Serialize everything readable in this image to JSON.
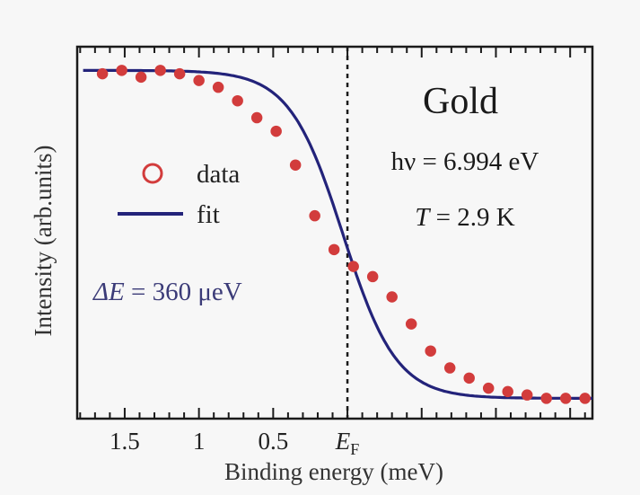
{
  "chart_data": {
    "type": "scatter",
    "title": "",
    "xlabel": "Binding energy (meV)",
    "ylabel": "Intensity (arb.units)",
    "x_reversed": true,
    "xlim": [
      -1.65,
      1.82
    ],
    "ylim": [
      -0.05,
      1.05
    ],
    "x_ticks": [
      {
        "value": 1.5,
        "label": "1.5"
      },
      {
        "value": 1.0,
        "label": "1"
      },
      {
        "value": 0.5,
        "label": "0.5"
      },
      {
        "value": 0.0,
        "label": "E",
        "subscript": "F"
      }
    ],
    "minor_tick_step": 0.1,
    "major_tick_step": 0.5,
    "y_ticks": "unlabeled",
    "fermi_line_x": 0.0,
    "series": [
      {
        "name": "data",
        "kind": "markers",
        "marker": "open-circle",
        "color": "#d23c3c",
        "x": [
          1.65,
          1.52,
          1.39,
          1.26,
          1.13,
          1.0,
          0.87,
          0.74,
          0.61,
          0.48,
          0.35,
          0.22,
          0.09,
          -0.04,
          -0.17,
          -0.3,
          -0.43,
          -0.56,
          -0.69,
          -0.82,
          -0.95,
          -1.08,
          -1.21,
          -1.34,
          -1.47,
          -1.6
        ],
        "y": [
          0.97,
          0.98,
          0.96,
          0.98,
          0.97,
          0.95,
          0.93,
          0.89,
          0.84,
          0.8,
          0.7,
          0.55,
          0.45,
          0.4,
          0.37,
          0.31,
          0.23,
          0.15,
          0.1,
          0.07,
          0.04,
          0.03,
          0.02,
          0.01,
          0.01,
          0.01
        ]
      },
      {
        "name": "fit",
        "kind": "line",
        "color": "#23237a",
        "function": "fermi",
        "params": {
          "amplitude": 0.97,
          "baseline": 0.01,
          "center": 0.03,
          "width": 0.18
        },
        "x_range": [
          -1.65,
          1.78
        ]
      }
    ],
    "legend": {
      "placement": "middle-left",
      "items": [
        "data",
        "fit"
      ]
    },
    "annotations": [
      {
        "id": "sample",
        "text": "Gold",
        "placement": "top-right"
      },
      {
        "id": "photon",
        "text": "hν = 6.994 eV",
        "placement": "right"
      },
      {
        "id": "temperature",
        "prefix": "T",
        "text": " = 2.9 K",
        "placement": "right"
      },
      {
        "id": "resolution",
        "prefix": "ΔE",
        "text": " = 360  μeV",
        "placement": "lower-left"
      }
    ],
    "grid": false
  }
}
